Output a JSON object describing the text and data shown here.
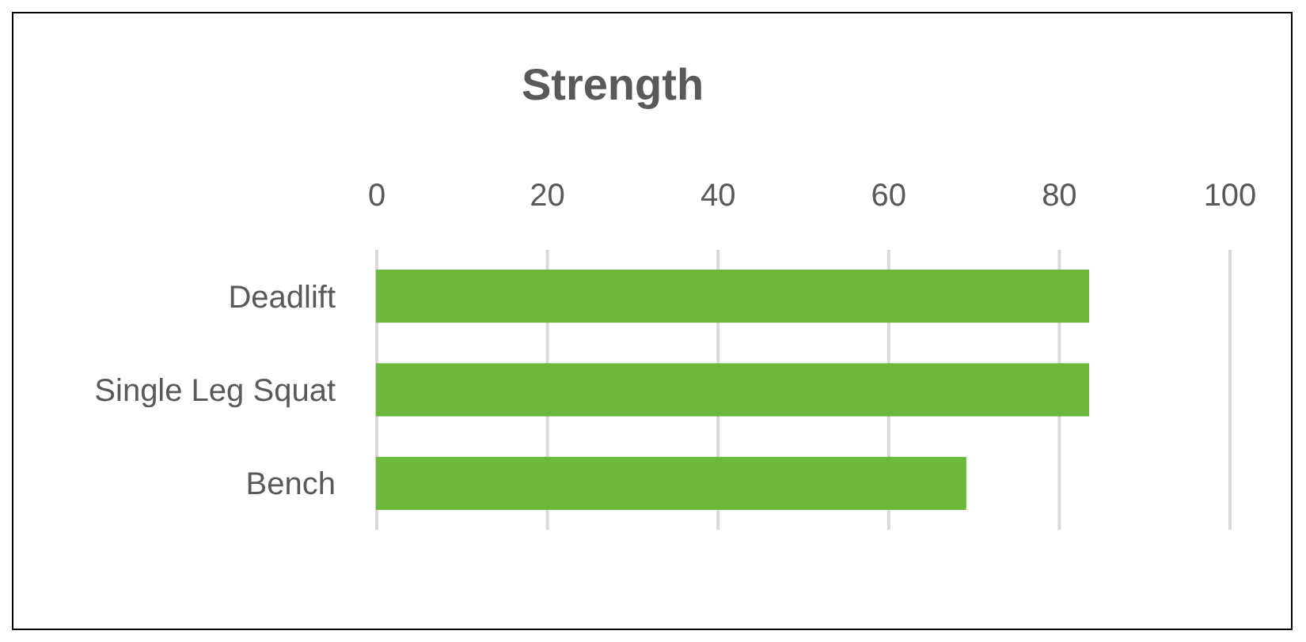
{
  "chart_data": {
    "type": "bar",
    "orientation": "horizontal",
    "title": "Strength",
    "categories": [
      "Deadlift",
      "Single Leg Squat",
      "Bench"
    ],
    "values": [
      83.4,
      83.4,
      69
    ],
    "color": "#6cb83a",
    "xlim": [
      0,
      100
    ],
    "xticks": [
      0,
      20,
      40,
      60,
      80,
      100
    ],
    "grid": "x"
  }
}
